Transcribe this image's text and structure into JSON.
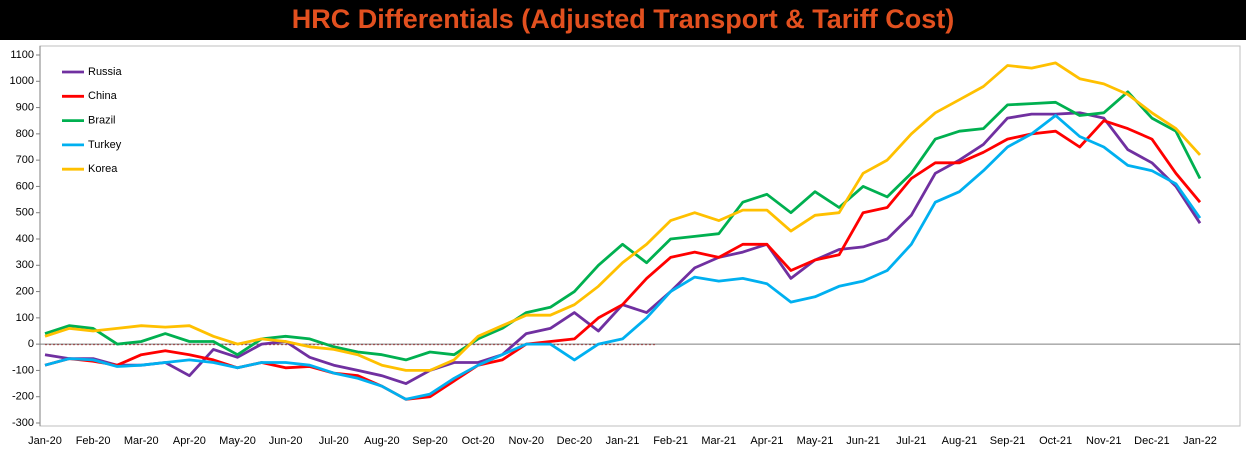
{
  "chart_data": {
    "type": "line",
    "title": "HRC Differentials (Adjusted Transport & Tariff Cost)",
    "categories": [
      "Jan-20",
      null,
      "Feb-20",
      null,
      "Mar-20",
      null,
      "Apr-20",
      null,
      "May-20",
      null,
      "Jun-20",
      null,
      "Jul-20",
      null,
      "Aug-20",
      null,
      "Sep-20",
      null,
      "Oct-20",
      null,
      "Nov-20",
      null,
      "Dec-20",
      null,
      "Jan-21",
      null,
      "Feb-21",
      null,
      "Mar-21",
      null,
      "Apr-21",
      null,
      "May-21",
      null,
      "Jun-21",
      null,
      "Jul-21",
      null,
      "Aug-21",
      null,
      "Sep-21",
      null,
      "Oct-21",
      null,
      "Nov-21",
      null,
      "Dec-21",
      null,
      "Jan-22"
    ],
    "series": [
      {
        "name": "Russia",
        "color": "#7030a0",
        "values": [
          -40,
          -55,
          -55,
          -80,
          -80,
          -70,
          -120,
          -20,
          -50,
          0,
          10,
          -50,
          -80,
          -100,
          -120,
          -150,
          -100,
          -70,
          -70,
          -40,
          40,
          60,
          120,
          50,
          150,
          120,
          200,
          290,
          330,
          350,
          380,
          250,
          320,
          360,
          370,
          400,
          490,
          650,
          700,
          760,
          860,
          875,
          875,
          880,
          860,
          740,
          690,
          600,
          460
        ]
      },
      {
        "name": "China",
        "color": "#ff0000",
        "values": [
          -80,
          -55,
          -65,
          -80,
          -40,
          -25,
          -40,
          -60,
          -90,
          -70,
          -90,
          -85,
          -110,
          -120,
          -160,
          -210,
          -200,
          -140,
          -80,
          -60,
          0,
          10,
          20,
          100,
          150,
          250,
          330,
          350,
          330,
          380,
          380,
          280,
          320,
          340,
          500,
          520,
          630,
          690,
          690,
          730,
          780,
          800,
          810,
          750,
          850,
          820,
          780,
          650,
          540
        ]
      },
      {
        "name": "Brazil",
        "color": "#00b050",
        "values": [
          40,
          70,
          60,
          0,
          10,
          40,
          10,
          10,
          -40,
          20,
          30,
          20,
          -10,
          -30,
          -40,
          -60,
          -30,
          -40,
          20,
          60,
          120,
          140,
          200,
          300,
          380,
          310,
          400,
          410,
          420,
          540,
          570,
          500,
          580,
          520,
          600,
          560,
          650,
          780,
          810,
          820,
          910,
          915,
          920,
          870,
          880,
          960,
          860,
          810,
          630
        ]
      },
      {
        "name": "Turkey",
        "color": "#00b0f0",
        "values": [
          -80,
          -55,
          -60,
          -85,
          -80,
          -70,
          -60,
          -70,
          -90,
          -70,
          -70,
          -80,
          -110,
          -130,
          -160,
          -210,
          -190,
          -130,
          -80,
          -40,
          0,
          0,
          -60,
          0,
          20,
          100,
          200,
          255,
          240,
          250,
          230,
          160,
          180,
          220,
          240,
          280,
          380,
          540,
          580,
          660,
          750,
          800,
          870,
          790,
          750,
          680,
          660,
          610,
          480
        ]
      },
      {
        "name": "Korea",
        "color": "#ffc000",
        "values": [
          30,
          60,
          50,
          60,
          70,
          65,
          70,
          30,
          0,
          20,
          10,
          -10,
          -20,
          -40,
          -80,
          -100,
          -100,
          -60,
          30,
          70,
          110,
          110,
          150,
          220,
          310,
          380,
          470,
          500,
          470,
          510,
          510,
          430,
          490,
          500,
          650,
          700,
          800,
          880,
          930,
          980,
          1060,
          1050,
          1070,
          1010,
          990,
          950,
          880,
          820,
          720
        ]
      }
    ],
    "ylim": [
      -300,
      1100
    ],
    "yticks": [
      -300,
      -200,
      -100,
      0,
      100,
      200,
      300,
      400,
      500,
      600,
      700,
      800,
      900,
      1000,
      1100
    ]
  }
}
